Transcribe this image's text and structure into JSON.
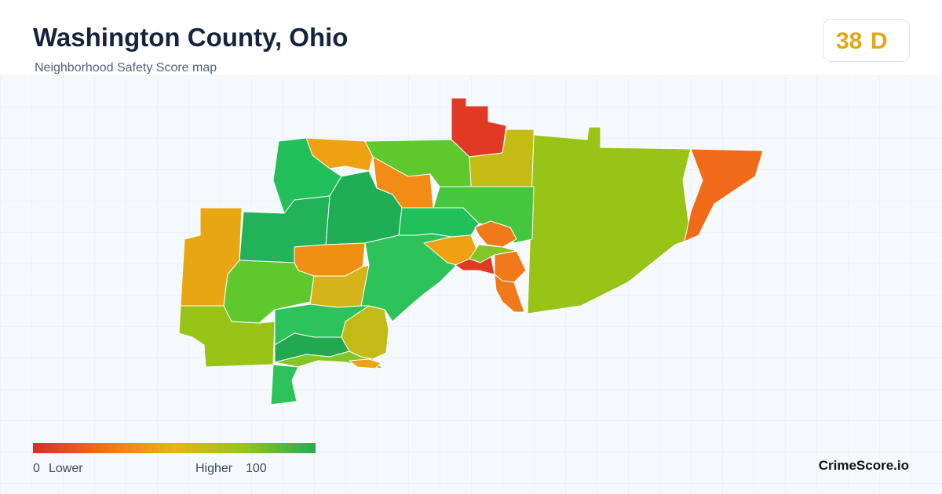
{
  "header": {
    "title": "Washington County, Ohio",
    "subtitle": "Neighborhood Safety Score map"
  },
  "score": {
    "value": 38,
    "grade": "D"
  },
  "legend": {
    "min": 0,
    "low_label": "Lower",
    "high_label": "Higher",
    "max": 100
  },
  "brand": "CrimeScore.io"
}
